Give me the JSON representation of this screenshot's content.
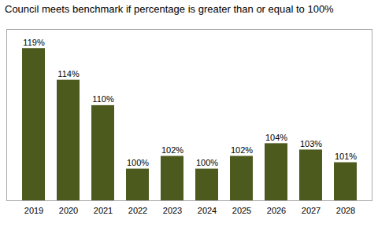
{
  "chart_data": {
    "type": "bar",
    "title": "Council meets benchmark if percentage is greater than or equal to 100%",
    "categories": [
      "2019",
      "2020",
      "2021",
      "2022",
      "2023",
      "2024",
      "2025",
      "2026",
      "2027",
      "2028"
    ],
    "values": [
      119,
      114,
      110,
      100,
      102,
      100,
      102,
      104,
      103,
      101
    ],
    "value_labels": [
      "119%",
      "114%",
      "110%",
      "100%",
      "102%",
      "100%",
      "102%",
      "104%",
      "103%",
      "101%"
    ],
    "color": "#4d5a1e",
    "ylim": [
      95,
      122
    ],
    "grid": false,
    "data_labels": true,
    "tick_labels": "x"
  }
}
